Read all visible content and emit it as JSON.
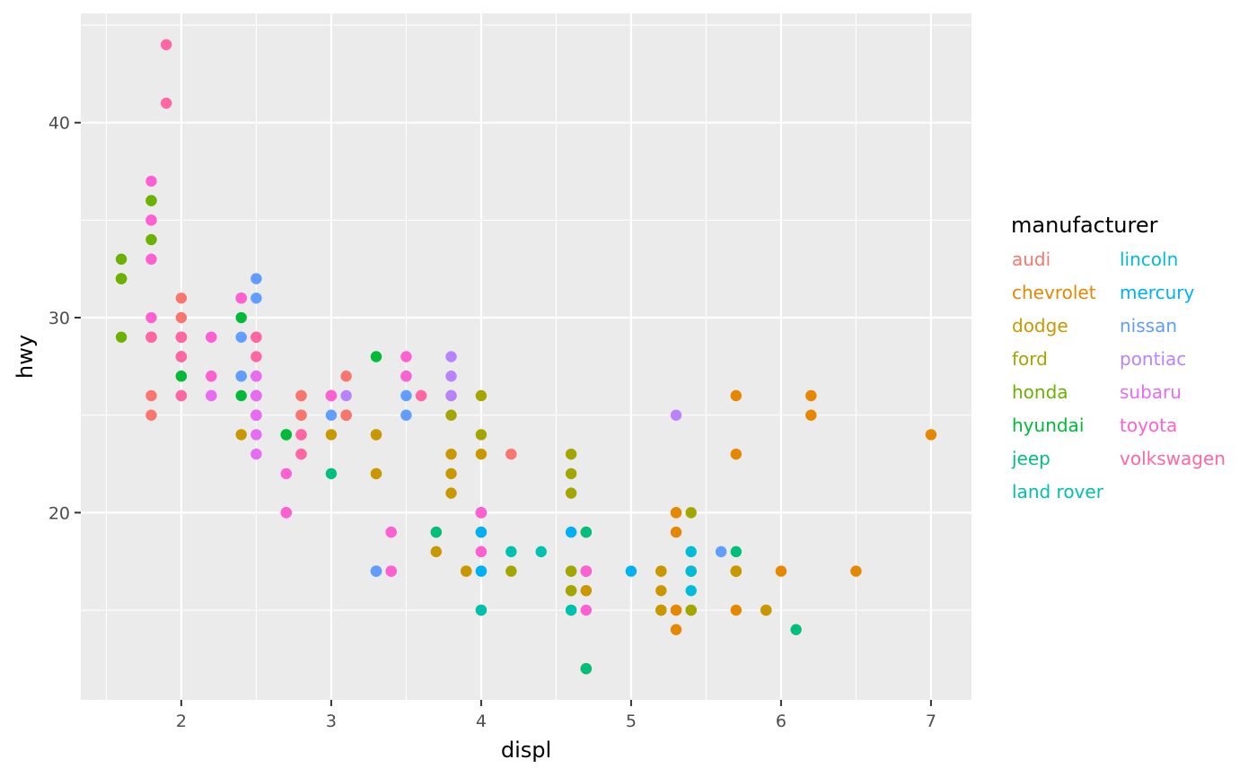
{
  "chart_data": {
    "type": "scatter",
    "xlabel": "displ",
    "ylabel": "hwy",
    "xlim": [
      1.33,
      7.27
    ],
    "ylim": [
      10.4,
      45.6
    ],
    "x_ticks": [
      2,
      3,
      4,
      5,
      6,
      7
    ],
    "x_tick_labels": [
      "2",
      "3",
      "4",
      "5",
      "6",
      "7"
    ],
    "y_ticks": [
      20,
      30,
      40
    ],
    "y_tick_labels": [
      "20",
      "30",
      "40"
    ],
    "x_minor_ticks": [
      1.5,
      2.5,
      3.5,
      4.5,
      5.5,
      6.5
    ],
    "y_minor_ticks": [
      15,
      25,
      35,
      45
    ],
    "grid": true,
    "panel_background": "#ebebeb",
    "legend": {
      "title": "manufacturer",
      "position": "right",
      "columns": 2
    },
    "series": [
      {
        "name": "audi",
        "color": "#F8766D",
        "points": [
          [
            1.8,
            29
          ],
          [
            1.8,
            29
          ],
          [
            2.0,
            31
          ],
          [
            2.0,
            30
          ],
          [
            2.8,
            26
          ],
          [
            2.8,
            26
          ],
          [
            3.1,
            27
          ],
          [
            1.8,
            26
          ],
          [
            1.8,
            25
          ],
          [
            2.0,
            28
          ],
          [
            2.0,
            27
          ],
          [
            2.8,
            25
          ],
          [
            2.8,
            25
          ],
          [
            3.1,
            25
          ],
          [
            3.1,
            25
          ],
          [
            2.8,
            24
          ],
          [
            3.1,
            25
          ],
          [
            4.2,
            23
          ]
        ]
      },
      {
        "name": "chevrolet",
        "color": "#E58700",
        "points": [
          [
            5.3,
            20
          ],
          [
            5.3,
            15
          ],
          [
            5.3,
            20
          ],
          [
            5.7,
            17
          ],
          [
            6.0,
            17
          ],
          [
            5.7,
            26
          ],
          [
            5.7,
            23
          ],
          [
            6.2,
            26
          ],
          [
            6.2,
            25
          ],
          [
            7.0,
            24
          ],
          [
            5.3,
            19
          ],
          [
            5.3,
            14
          ],
          [
            5.7,
            15
          ],
          [
            6.5,
            17
          ],
          [
            5.7,
            17
          ],
          [
            5.3,
            15
          ]
        ]
      },
      {
        "name": "dodge",
        "color": "#C99800",
        "points": [
          [
            2.4,
            24
          ],
          [
            3.0,
            24
          ],
          [
            3.3,
            22
          ],
          [
            3.3,
            22
          ],
          [
            3.3,
            24
          ],
          [
            3.3,
            24
          ],
          [
            3.3,
            17
          ],
          [
            3.8,
            22
          ],
          [
            3.8,
            21
          ],
          [
            3.8,
            23
          ],
          [
            4.0,
            23
          ],
          [
            3.7,
            19
          ],
          [
            3.7,
            18
          ],
          [
            3.9,
            17
          ],
          [
            3.9,
            17
          ],
          [
            4.7,
            19
          ],
          [
            4.7,
            19
          ],
          [
            4.7,
            12
          ],
          [
            5.2,
            17
          ],
          [
            5.2,
            15
          ],
          [
            5.7,
            17
          ],
          [
            5.9,
            15
          ],
          [
            4.7,
            17
          ],
          [
            4.7,
            12
          ],
          [
            4.7,
            16
          ],
          [
            5.2,
            16
          ],
          [
            5.2,
            15
          ],
          [
            5.9,
            15
          ],
          [
            4.7,
            17
          ],
          [
            5.2,
            17
          ],
          [
            5.7,
            17
          ],
          [
            5.9,
            15
          ],
          [
            4.7,
            16
          ],
          [
            4.7,
            12
          ],
          [
            5.2,
            15
          ],
          [
            5.7,
            17
          ]
        ]
      },
      {
        "name": "ford",
        "color": "#A3A500",
        "points": [
          [
            4.0,
            20
          ],
          [
            4.0,
            15
          ],
          [
            4.0,
            20
          ],
          [
            4.0,
            17
          ],
          [
            4.6,
            17
          ],
          [
            5.4,
            17
          ],
          [
            5.4,
            17
          ],
          [
            4.0,
            19
          ],
          [
            4.0,
            19
          ],
          [
            4.0,
            15
          ],
          [
            4.6,
            16
          ],
          [
            4.6,
            17
          ],
          [
            5.4,
            15
          ],
          [
            5.4,
            20
          ],
          [
            3.8,
            26
          ],
          [
            3.8,
            25
          ],
          [
            4.0,
            26
          ],
          [
            4.0,
            24
          ],
          [
            4.6,
            21
          ],
          [
            4.6,
            22
          ],
          [
            4.6,
            23
          ],
          [
            5.4,
            15
          ],
          [
            4.2,
            17
          ],
          [
            4.6,
            16
          ],
          [
            5.4,
            15
          ],
          [
            4.6,
            15
          ]
        ]
      },
      {
        "name": "honda",
        "color": "#6BB100",
        "points": [
          [
            1.6,
            33
          ],
          [
            1.6,
            32
          ],
          [
            1.6,
            32
          ],
          [
            1.6,
            29
          ],
          [
            1.6,
            32
          ],
          [
            1.8,
            34
          ],
          [
            1.8,
            36
          ],
          [
            1.8,
            36
          ],
          [
            2.0,
            29
          ]
        ]
      },
      {
        "name": "hyundai",
        "color": "#00BA38",
        "points": [
          [
            2.4,
            26
          ],
          [
            2.4,
            27
          ],
          [
            2.4,
            30
          ],
          [
            2.4,
            31
          ],
          [
            2.5,
            26
          ],
          [
            2.5,
            26
          ],
          [
            3.3,
            28
          ],
          [
            2.0,
            26
          ],
          [
            2.0,
            29
          ],
          [
            2.0,
            28
          ],
          [
            2.0,
            27
          ],
          [
            2.7,
            24
          ],
          [
            2.7,
            24
          ],
          [
            2.7,
            24
          ]
        ]
      },
      {
        "name": "jeep",
        "color": "#00BF7D",
        "points": [
          [
            3.0,
            22
          ],
          [
            3.7,
            19
          ],
          [
            4.0,
            20
          ],
          [
            4.7,
            17
          ],
          [
            4.7,
            12
          ],
          [
            4.7,
            19
          ],
          [
            5.7,
            18
          ],
          [
            6.1,
            14
          ]
        ]
      },
      {
        "name": "land rover",
        "color": "#00C0AF",
        "points": [
          [
            4.0,
            15
          ],
          [
            4.2,
            18
          ],
          [
            4.4,
            18
          ],
          [
            4.6,
            15
          ]
        ]
      },
      {
        "name": "lincoln",
        "color": "#00BCD8",
        "points": [
          [
            5.4,
            17
          ],
          [
            5.4,
            16
          ],
          [
            5.4,
            18
          ]
        ]
      },
      {
        "name": "mercury",
        "color": "#00B0F6",
        "points": [
          [
            4.0,
            17
          ],
          [
            4.0,
            19
          ],
          [
            4.6,
            19
          ],
          [
            5.0,
            17
          ]
        ]
      },
      {
        "name": "nissan",
        "color": "#619CFF",
        "points": [
          [
            2.4,
            27
          ],
          [
            2.4,
            29
          ],
          [
            2.5,
            31
          ],
          [
            2.5,
            32
          ],
          [
            3.5,
            27
          ],
          [
            3.5,
            26
          ],
          [
            3.0,
            26
          ],
          [
            3.0,
            25
          ],
          [
            3.5,
            25
          ],
          [
            3.3,
            17
          ],
          [
            3.3,
            17
          ],
          [
            4.0,
            20
          ],
          [
            5.6,
            18
          ]
        ]
      },
      {
        "name": "pontiac",
        "color": "#B983FF",
        "points": [
          [
            3.1,
            26
          ],
          [
            3.8,
            26
          ],
          [
            3.8,
            27
          ],
          [
            3.8,
            28
          ],
          [
            5.3,
            25
          ]
        ]
      },
      {
        "name": "subaru",
        "color": "#E76BF3",
        "points": [
          [
            2.5,
            25
          ],
          [
            2.5,
            24
          ],
          [
            2.5,
            27
          ],
          [
            2.5,
            25
          ],
          [
            2.5,
            26
          ],
          [
            2.5,
            23
          ],
          [
            2.2,
            26
          ],
          [
            2.2,
            26
          ],
          [
            2.5,
            26
          ],
          [
            2.5,
            26
          ],
          [
            2.5,
            25
          ],
          [
            2.5,
            27
          ],
          [
            2.5,
            25
          ],
          [
            2.5,
            27
          ]
        ]
      },
      {
        "name": "toyota",
        "color": "#FD61D1",
        "points": [
          [
            2.7,
            20
          ],
          [
            2.7,
            20
          ],
          [
            3.4,
            19
          ],
          [
            3.4,
            17
          ],
          [
            4.0,
            20
          ],
          [
            4.7,
            17
          ],
          [
            2.2,
            29
          ],
          [
            2.2,
            27
          ],
          [
            2.4,
            31
          ],
          [
            2.4,
            31
          ],
          [
            3.0,
            26
          ],
          [
            3.0,
            26
          ],
          [
            3.5,
            28
          ],
          [
            2.2,
            27
          ],
          [
            2.2,
            29
          ],
          [
            2.4,
            31
          ],
          [
            2.4,
            31
          ],
          [
            3.0,
            26
          ],
          [
            3.0,
            26
          ],
          [
            3.5,
            27
          ],
          [
            1.8,
            30
          ],
          [
            1.8,
            33
          ],
          [
            1.8,
            35
          ],
          [
            1.8,
            37
          ],
          [
            1.8,
            35
          ],
          [
            4.0,
            18
          ],
          [
            4.7,
            15
          ],
          [
            4.7,
            17
          ],
          [
            2.7,
            20
          ],
          [
            2.7,
            22
          ],
          [
            3.4,
            17
          ],
          [
            3.4,
            19
          ],
          [
            4.0,
            18
          ],
          [
            4.0,
            20
          ]
        ]
      },
      {
        "name": "volkswagen",
        "color": "#FF67A4",
        "points": [
          [
            2.0,
            29
          ],
          [
            2.0,
            26
          ],
          [
            2.0,
            29
          ],
          [
            2.0,
            29
          ],
          [
            2.8,
            24
          ],
          [
            1.9,
            44
          ],
          [
            2.0,
            29
          ],
          [
            2.0,
            26
          ],
          [
            2.0,
            29
          ],
          [
            2.0,
            29
          ],
          [
            2.5,
            29
          ],
          [
            2.5,
            29
          ],
          [
            2.8,
            23
          ],
          [
            2.8,
            24
          ],
          [
            1.8,
            29
          ],
          [
            1.8,
            29
          ],
          [
            2.0,
            29
          ],
          [
            2.0,
            28
          ],
          [
            2.8,
            23
          ],
          [
            1.9,
            41
          ],
          [
            2.0,
            29
          ],
          [
            2.0,
            28
          ],
          [
            2.5,
            28
          ],
          [
            2.5,
            29
          ],
          [
            3.6,
            26
          ],
          [
            3.6,
            26
          ]
        ]
      }
    ]
  }
}
